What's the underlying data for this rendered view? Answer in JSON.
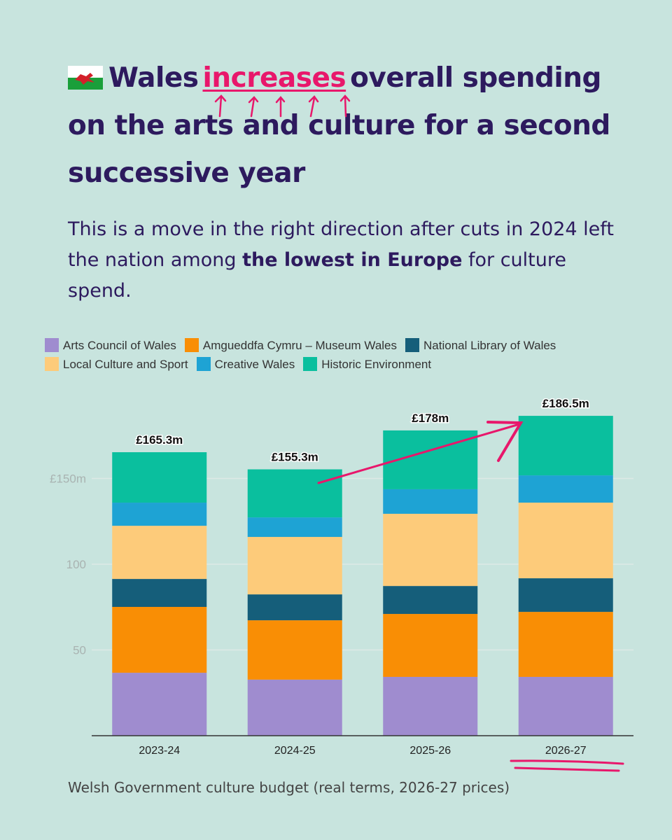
{
  "title_parts": [
    "Wales",
    "increases",
    "overall spending on the arts and culture for a second successive year"
  ],
  "subtitle_parts": [
    "This is a move in the right direction after cuts in 2024 left the nation among",
    "the lowest in Europe",
    "for culture spend."
  ],
  "chart_data": {
    "type": "stacked_bar",
    "categories": [
      "2023-24",
      "2024-25",
      "2025-26",
      "2026-27"
    ],
    "series": [
      {
        "name": "Arts Council of Wales",
        "color": "#9f8ccf",
        "values": [
          36.7,
          32.7,
          34.3,
          34.3
        ]
      },
      {
        "name": "Amgueddfa Cymru – Museum Wales",
        "color": "#f98e05",
        "values": [
          38.4,
          34.6,
          36.7,
          37.9
        ]
      },
      {
        "name": "National Library of Wales",
        "color": "#155e7a",
        "values": [
          16.3,
          15.1,
          16.3,
          19.6
        ]
      },
      {
        "name": "Local Culture and Sport",
        "color": "#fdcb7a",
        "values": [
          31.0,
          33.5,
          42.1,
          44.1
        ]
      },
      {
        "name": "Creative Wales",
        "color": "#1ea3d4",
        "values": [
          13.5,
          11.4,
          14.3,
          15.9
        ]
      },
      {
        "name": "Historic Environment",
        "color": "#0abf9e",
        "values": [
          29.4,
          28.0,
          34.3,
          34.7
        ]
      }
    ],
    "totals": {
      "values": [
        165.3,
        155.3,
        178,
        186.5
      ],
      "value_labels": [
        "£165.3m",
        "£155.3m",
        "£178m",
        "£186.5m"
      ]
    },
    "ylim": [
      0,
      190
    ],
    "yticks": [
      50,
      100,
      {
        "value": 150,
        "label": "£150m"
      }
    ],
    "grid": true,
    "caption": "Welsh Government culture budget (real terms, 2026-27 prices)"
  }
}
